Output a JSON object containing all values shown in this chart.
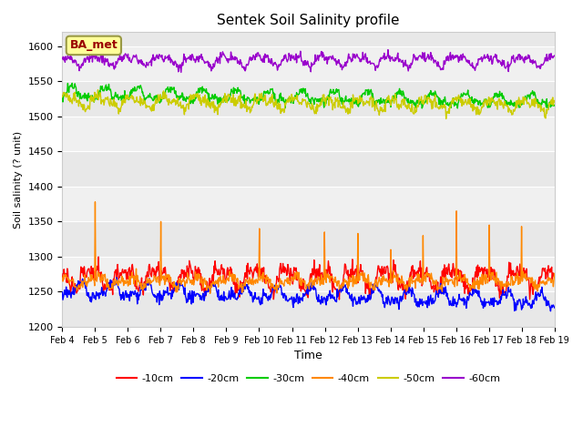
{
  "title": "Sentek Soil Salinity profile",
  "xlabel": "Time",
  "ylabel": "Soil salinity (? unit)",
  "ylim": [
    1200,
    1620
  ],
  "yticks": [
    1200,
    1250,
    1300,
    1350,
    1400,
    1450,
    1500,
    1550,
    1600
  ],
  "xtick_labels": [
    "Feb 4",
    "Feb 5",
    "Feb 6",
    "Feb 7",
    "Feb 8",
    "Feb 9",
    "Feb 10",
    "Feb 11",
    "Feb 12",
    "Feb 13",
    "Feb 14",
    "Feb 15",
    "Feb 16",
    "Feb 17",
    "Feb 18",
    "Feb 19"
  ],
  "legend_labels": [
    "-10cm",
    "-20cm",
    "-30cm",
    "-40cm",
    "-50cm",
    "-60cm"
  ],
  "line_colors": [
    "#ff0000",
    "#0000ff",
    "#00cc00",
    "#ff8800",
    "#cccc00",
    "#9900cc"
  ],
  "annotation_text": "BA_met",
  "annotation_color": "#990000",
  "annotation_bg": "#ffff99",
  "annotation_border": "#999944",
  "band_colors": [
    "#e8e8e8",
    "#f0f0f0"
  ],
  "figsize": [
    6.4,
    4.8
  ],
  "dpi": 100,
  "n_points": 900,
  "seed": 42,
  "d10_base": 1270,
  "d10_amp": 12,
  "d10_noise": 6,
  "d20_base": 1252,
  "d20_amp": 8,
  "d20_noise": 4,
  "d20_trend": -15,
  "d30_base": 1533,
  "d30_amp": 7,
  "d30_noise": 3,
  "d30_trend": -12,
  "d40_base": 1265,
  "d40_amp": 5,
  "d40_noise": 4,
  "d50_base": 1522,
  "d50_amp": 7,
  "d50_noise": 4,
  "d50_trend": -6,
  "d60_base": 1580,
  "d60_amp": 6,
  "d60_noise": 3,
  "spike_day_fracs": [
    0.067,
    0.2,
    0.4,
    0.533,
    0.6,
    0.667,
    0.733,
    0.8,
    0.867,
    0.933
  ],
  "spike_heights": [
    1378,
    1350,
    1340,
    1335,
    1333,
    1310,
    1330,
    1365,
    1345,
    1343
  ]
}
